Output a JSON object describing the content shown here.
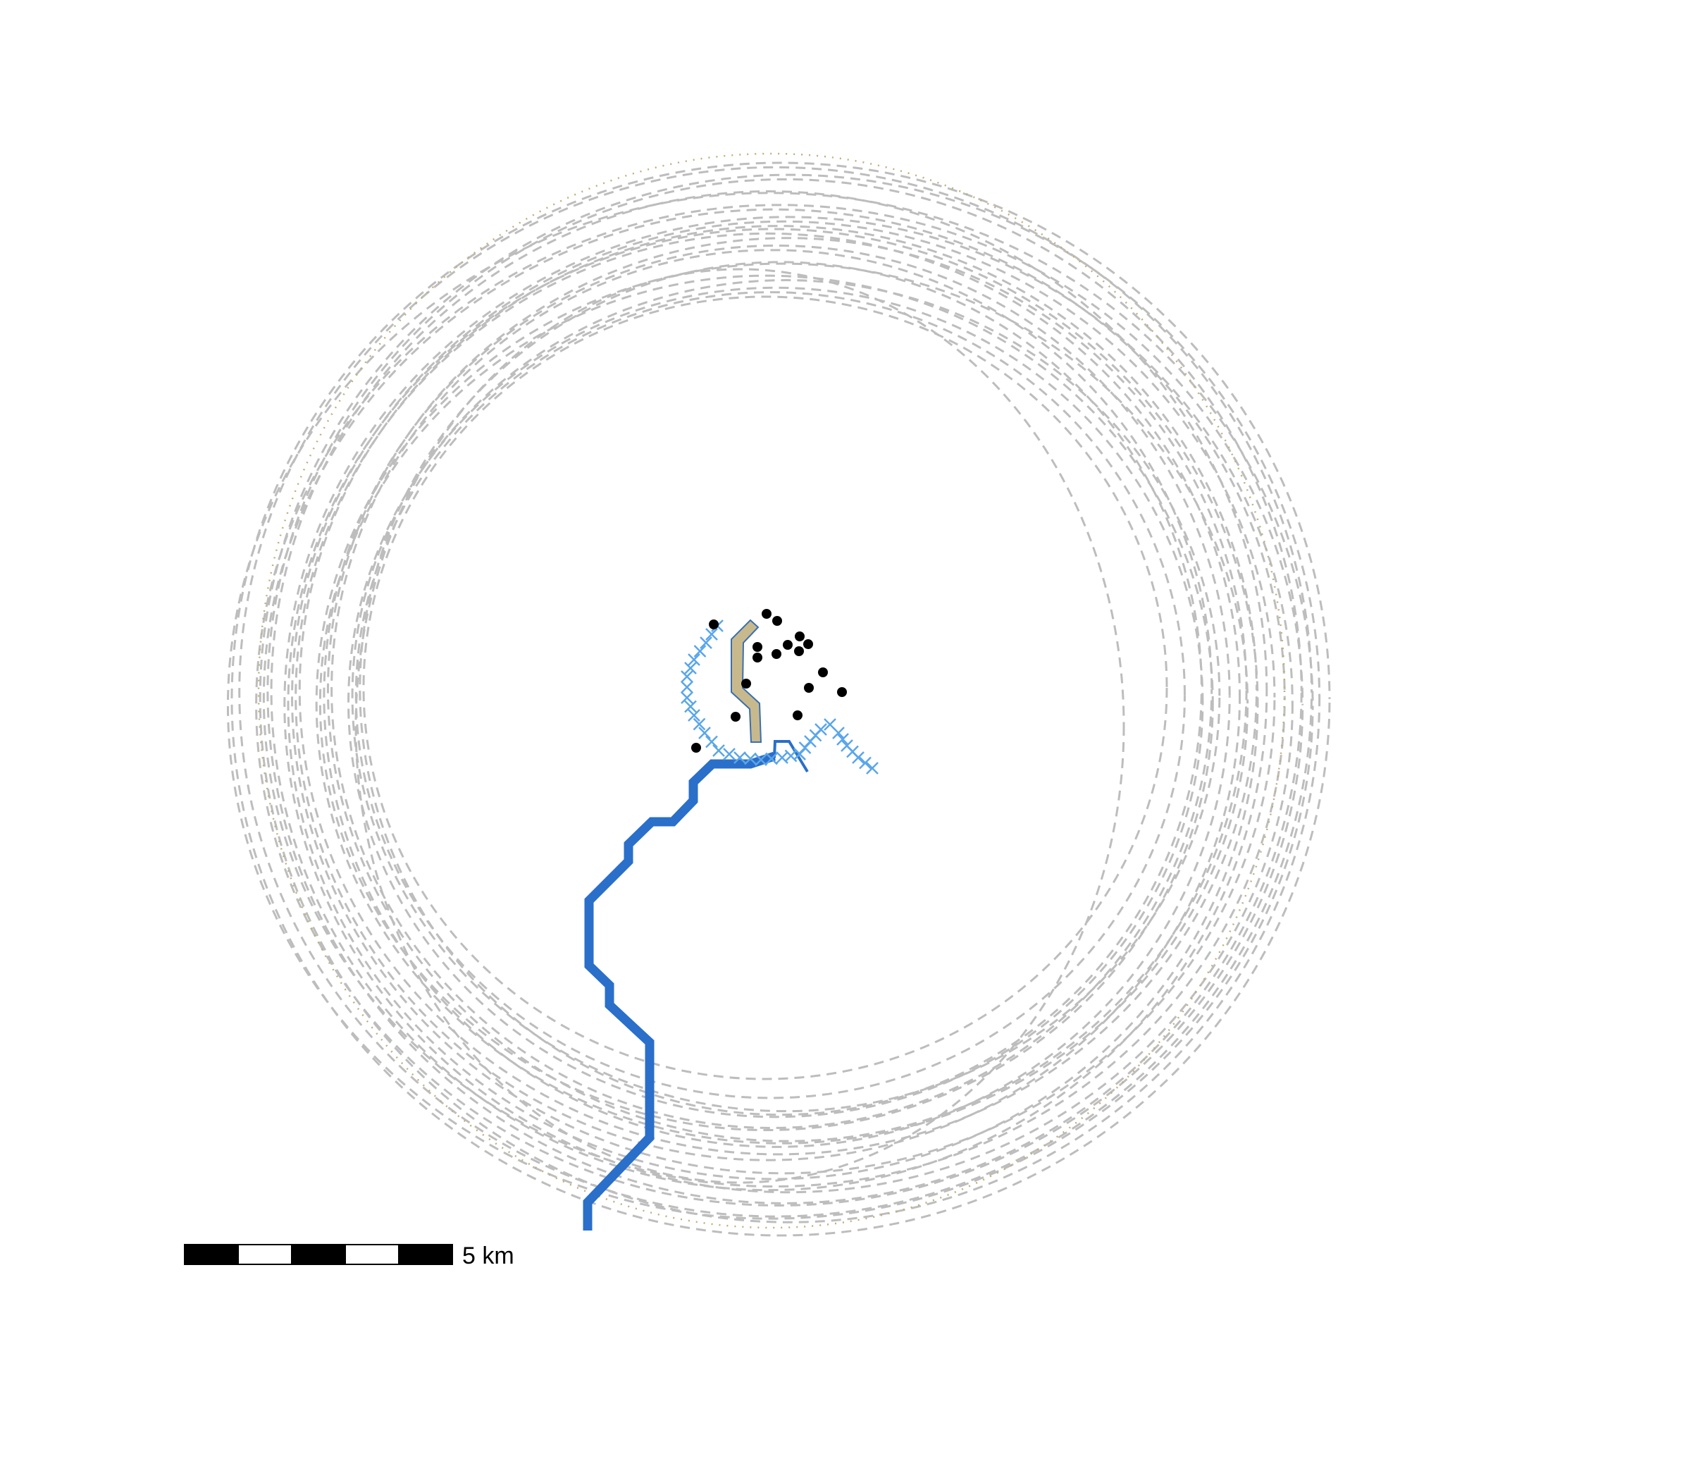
{
  "map": {
    "scale_bar": {
      "label": "5 km",
      "segments": 5,
      "colors": [
        "#000000",
        "#ffffff"
      ]
    },
    "colors": {
      "contour": "#bdbdbd",
      "boundary": "#c4ae7a",
      "river_main": "#2a6fc9",
      "river_minor": "#2a6fc9",
      "stream_x": "#5aa6ea",
      "channel_fill": "#c8b98d",
      "channel_edge": "#3a6fb0",
      "point": "#000000"
    },
    "layers": [
      {
        "name": "contour-lines",
        "style": "dashed",
        "count": 23
      },
      {
        "name": "outer-boundary",
        "style": "dotted"
      },
      {
        "name": "main-river",
        "style": "solid-thick"
      },
      {
        "name": "stream-crosses",
        "style": "x-markers"
      },
      {
        "name": "channel",
        "style": "tan-fill"
      },
      {
        "name": "point-features",
        "style": "dots",
        "count": 20
      }
    ]
  }
}
